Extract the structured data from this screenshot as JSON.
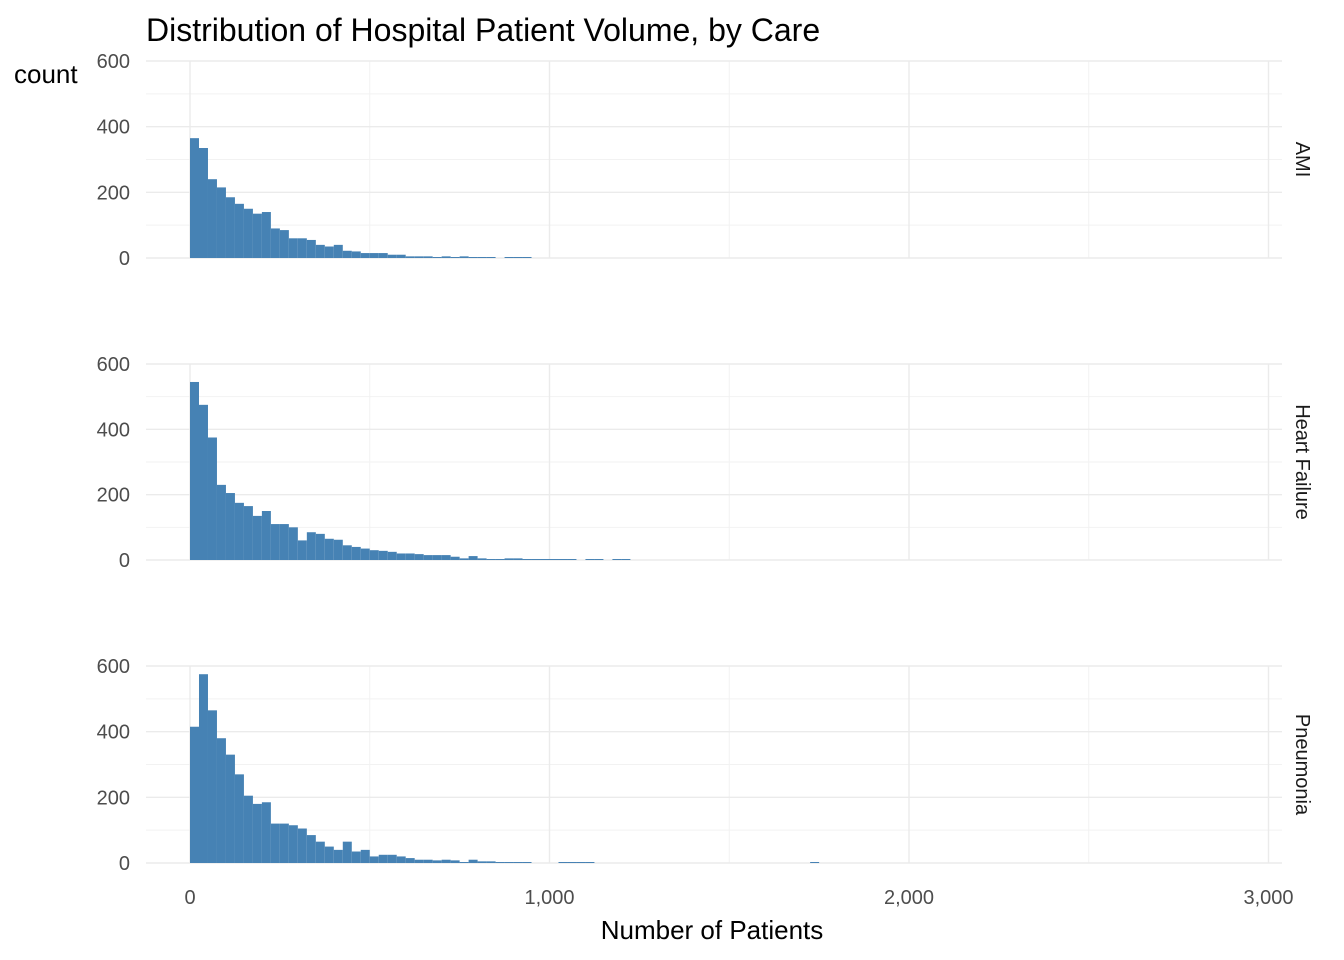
{
  "chart_data": {
    "type": "histogram",
    "title": "Distribution of Hospital Patient Volume, by Care",
    "xlabel": "Number of Patients",
    "ylabel": "count",
    "xlim": [
      -125,
      3050
    ],
    "x_ticks": [
      0,
      1000,
      2000,
      3000
    ],
    "x_tick_labels": [
      "0",
      "1,000",
      "2,000",
      "3,000"
    ],
    "ylim": [
      0,
      600
    ],
    "y_ticks": [
      0,
      200,
      400,
      600
    ],
    "y_tick_labels": [
      "0",
      "200",
      "400",
      "600"
    ],
    "bin_start": 0,
    "bin_width": 25,
    "bar_color": "#4682b4",
    "facets": [
      {
        "label": "AMI",
        "counts": [
          365,
          335,
          240,
          215,
          185,
          165,
          150,
          135,
          140,
          90,
          85,
          60,
          60,
          55,
          40,
          35,
          40,
          22,
          20,
          15,
          15,
          15,
          10,
          10,
          5,
          5,
          5,
          3,
          5,
          3,
          5,
          3,
          3,
          3,
          0,
          3,
          3,
          3
        ]
      },
      {
        "label": "Heart Failure",
        "counts": [
          545,
          475,
          375,
          230,
          205,
          175,
          165,
          135,
          150,
          110,
          110,
          100,
          60,
          85,
          80,
          65,
          62,
          45,
          40,
          35,
          30,
          28,
          25,
          20,
          20,
          18,
          15,
          15,
          15,
          10,
          5,
          12,
          5,
          3,
          3,
          5,
          5,
          3,
          3,
          3,
          3,
          3,
          3,
          0,
          3,
          3,
          0,
          3,
          3
        ]
      },
      {
        "label": "Pneumonia",
        "counts": [
          415,
          575,
          465,
          380,
          330,
          270,
          205,
          180,
          185,
          120,
          120,
          115,
          105,
          85,
          65,
          50,
          40,
          65,
          35,
          40,
          20,
          25,
          25,
          20,
          15,
          10,
          10,
          8,
          10,
          8,
          3,
          10,
          5,
          5,
          3,
          3,
          3,
          3,
          0,
          0,
          0,
          3,
          3,
          3,
          3,
          0,
          0,
          0,
          0,
          0,
          0,
          0,
          0,
          0,
          0,
          0,
          0,
          0,
          0,
          0,
          0,
          0,
          0,
          0,
          0,
          0,
          0,
          0,
          0,
          3
        ]
      }
    ]
  }
}
